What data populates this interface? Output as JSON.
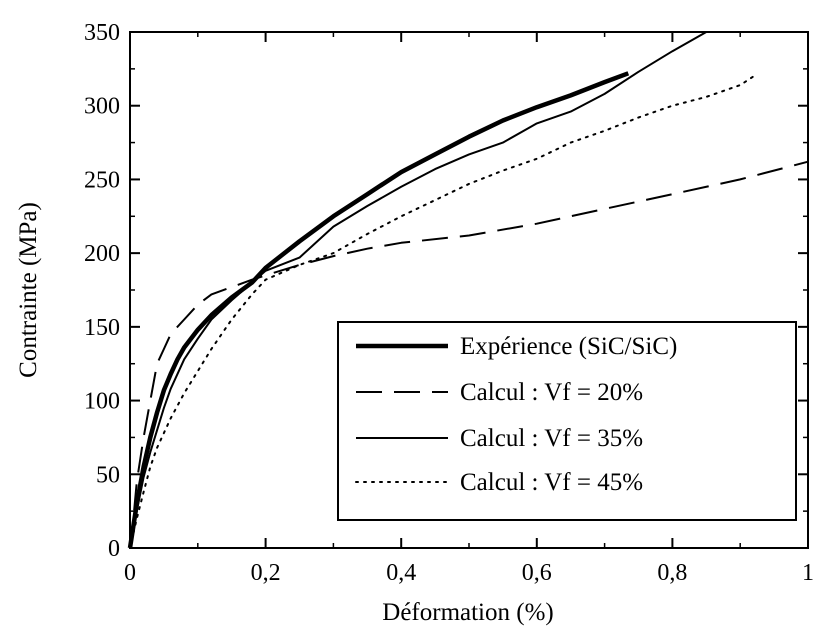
{
  "chart_data": {
    "type": "line",
    "xlabel": "Déformation (%)",
    "ylabel": "Contrainte (MPa)",
    "xlim": [
      0,
      1
    ],
    "ylim": [
      0,
      350
    ],
    "x_ticks": [
      0,
      0.2,
      0.4,
      0.6,
      0.8,
      1
    ],
    "x_tick_labels": [
      "0",
      "0,2",
      "0,4",
      "0,6",
      "0,8",
      "1"
    ],
    "y_ticks": [
      0,
      50,
      100,
      150,
      200,
      250,
      300,
      350
    ],
    "y_tick_labels": [
      "0",
      "50",
      "100",
      "150",
      "200",
      "250",
      "300",
      "350"
    ],
    "grid": false,
    "legend_position": "bottom-right",
    "series": [
      {
        "name": "Expérience (SiC/SiC)",
        "style": "solid-thick",
        "color": "#000000",
        "x": [
          0,
          0.005,
          0.01,
          0.02,
          0.03,
          0.04,
          0.05,
          0.06,
          0.07,
          0.08,
          0.1,
          0.12,
          0.15,
          0.18,
          0.2,
          0.25,
          0.3,
          0.35,
          0.4,
          0.45,
          0.5,
          0.55,
          0.6,
          0.65,
          0.7,
          0.735
        ],
        "y": [
          0,
          15,
          30,
          55,
          75,
          92,
          107,
          118,
          128,
          136,
          148,
          158,
          170,
          180,
          190,
          208,
          225,
          240,
          255,
          267,
          279,
          290,
          299,
          307,
          316,
          322
        ]
      },
      {
        "name": "Calcul : Vf = 20%",
        "style": "dashed",
        "color": "#000000",
        "x": [
          0,
          0.005,
          0.01,
          0.015,
          0.02,
          0.03,
          0.04,
          0.05,
          0.06,
          0.08,
          0.1,
          0.12,
          0.15,
          0.18,
          0.2,
          0.25,
          0.3,
          0.35,
          0.4,
          0.5,
          0.6,
          0.7,
          0.8,
          0.9,
          1.0
        ],
        "y": [
          0,
          20,
          45,
          60,
          75,
          100,
          125,
          135,
          145,
          155,
          165,
          172,
          177,
          182,
          185,
          192,
          198,
          203,
          207,
          212,
          220,
          230,
          240,
          250,
          262
        ]
      },
      {
        "name": "Calcul : Vf = 35%",
        "style": "solid",
        "color": "#000000",
        "x": [
          0,
          0.005,
          0.01,
          0.02,
          0.03,
          0.04,
          0.05,
          0.06,
          0.08,
          0.1,
          0.12,
          0.15,
          0.18,
          0.2,
          0.25,
          0.3,
          0.35,
          0.4,
          0.45,
          0.5,
          0.55,
          0.6,
          0.65,
          0.7,
          0.75,
          0.8,
          0.85
        ],
        "y": [
          0,
          12,
          25,
          48,
          65,
          80,
          95,
          108,
          128,
          142,
          155,
          168,
          180,
          188,
          197,
          218,
          232,
          245,
          257,
          267,
          275,
          288,
          296,
          308,
          323,
          337,
          350
        ]
      },
      {
        "name": "Calcul : Vf = 45%",
        "style": "dotted",
        "color": "#000000",
        "x": [
          0,
          0.005,
          0.01,
          0.02,
          0.03,
          0.04,
          0.05,
          0.06,
          0.08,
          0.1,
          0.12,
          0.15,
          0.18,
          0.2,
          0.25,
          0.3,
          0.35,
          0.4,
          0.45,
          0.5,
          0.55,
          0.6,
          0.65,
          0.7,
          0.75,
          0.8,
          0.85,
          0.9,
          0.92
        ],
        "y": [
          0,
          10,
          20,
          38,
          55,
          68,
          78,
          88,
          105,
          120,
          135,
          155,
          172,
          182,
          192,
          200,
          213,
          225,
          236,
          247,
          256,
          264,
          275,
          283,
          292,
          300,
          306,
          314,
          320
        ]
      }
    ]
  }
}
